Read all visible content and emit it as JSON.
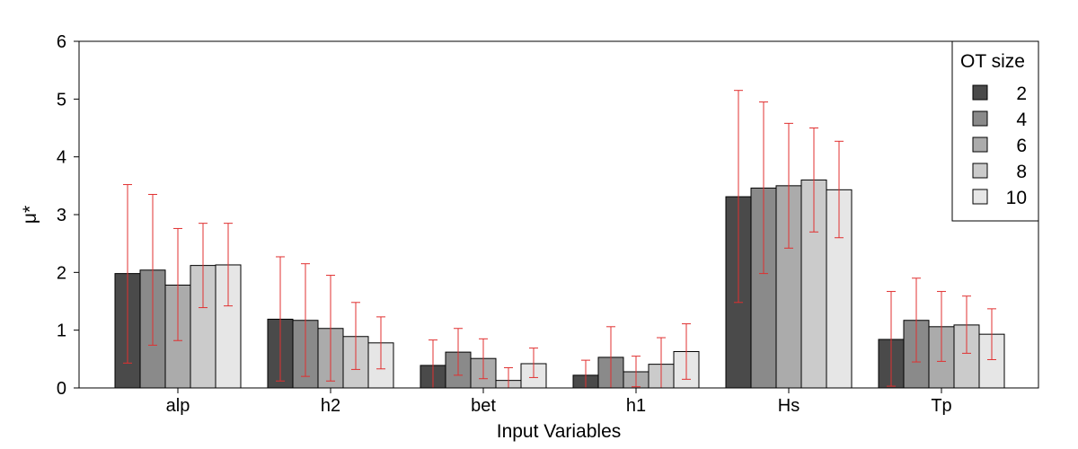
{
  "chart_data": {
    "type": "bar",
    "title": "",
    "xlabel": "Input Variables",
    "ylabel": "μ*",
    "ylim": [
      0,
      6
    ],
    "yticks": [
      "0",
      "1",
      "2",
      "3",
      "4",
      "5",
      "6"
    ],
    "grid": false,
    "categories": [
      "alp",
      "h2",
      "bet",
      "h1",
      "Hs",
      "Tp"
    ],
    "legend": {
      "title": "OT size",
      "placement": "top-right"
    },
    "error_bar_color": "#e03030",
    "series": [
      {
        "name": "2",
        "color": "#4a4a4a",
        "values": [
          1.98,
          1.19,
          0.39,
          0.22,
          3.31,
          0.84
        ],
        "err_low": [
          0.43,
          0.12,
          0.0,
          0.0,
          1.48,
          0.03
        ],
        "err_high": [
          3.52,
          2.27,
          0.83,
          0.48,
          5.15,
          1.67
        ]
      },
      {
        "name": "4",
        "color": "#8a8a8a",
        "values": [
          2.04,
          1.17,
          0.62,
          0.53,
          3.46,
          1.17
        ],
        "err_low": [
          0.74,
          0.2,
          0.22,
          0.0,
          1.98,
          0.45
        ],
        "err_high": [
          3.35,
          2.15,
          1.03,
          1.06,
          4.95,
          1.9
        ]
      },
      {
        "name": "6",
        "color": "#ababab",
        "values": [
          1.78,
          1.03,
          0.51,
          0.28,
          3.5,
          1.06
        ],
        "err_low": [
          0.82,
          0.12,
          0.16,
          0.02,
          2.42,
          0.46
        ],
        "err_high": [
          2.76,
          1.95,
          0.85,
          0.55,
          4.58,
          1.67
        ]
      },
      {
        "name": "8",
        "color": "#cbcbcb",
        "values": [
          2.12,
          0.89,
          0.13,
          0.41,
          3.6,
          1.09
        ],
        "err_low": [
          1.39,
          0.32,
          0.0,
          0.0,
          2.7,
          0.6
        ],
        "err_high": [
          2.85,
          1.48,
          0.35,
          0.87,
          4.5,
          1.59
        ]
      },
      {
        "name": "10",
        "color": "#e6e6e6",
        "values": [
          2.13,
          0.78,
          0.42,
          0.63,
          3.43,
          0.93
        ],
        "err_low": [
          1.42,
          0.33,
          0.18,
          0.15,
          2.6,
          0.49
        ],
        "err_high": [
          2.85,
          1.23,
          0.69,
          1.11,
          4.27,
          1.37
        ]
      }
    ]
  }
}
